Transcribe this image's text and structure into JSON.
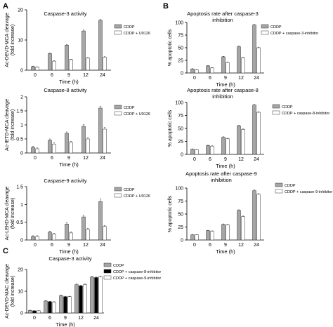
{
  "panels": [
    {
      "id": "panel-a",
      "letter": "A"
    },
    {
      "id": "panel-b",
      "letter": "B"
    },
    {
      "id": "panel-c",
      "letter": "C"
    }
  ],
  "colors": {
    "gray": "#a6a6a6",
    "white": "#ffffff",
    "black": "#000000",
    "axis": "#000000"
  },
  "chart_data": [
    {
      "id": "a1",
      "type": "bar",
      "title": "Caspase-3 activity",
      "ylabel": "Ac-DEVD-MCA cleavage (fold increase)",
      "xlabel": "Time (h)",
      "categories": [
        "0",
        "6",
        "9",
        "12",
        "24"
      ],
      "ylim": [
        0,
        20
      ],
      "yticks": [
        0,
        10,
        20
      ],
      "series": [
        {
          "name": "CDDP",
          "color": "gray",
          "values": [
            1.2,
            5.5,
            8.3,
            13.0,
            16.5
          ],
          "err": [
            0.15,
            0.2,
            0.25,
            0.3,
            0.35
          ]
        },
        {
          "name": "CDDP + U0126",
          "color": "white",
          "values": [
            1.0,
            3.0,
            3.5,
            4.0,
            4.3
          ],
          "err": [
            0.1,
            0.15,
            0.15,
            0.2,
            0.2
          ]
        }
      ],
      "legend": "right"
    },
    {
      "id": "a2",
      "type": "bar",
      "title": "Caspase-8 activity",
      "ylabel": "Ac-IETD-MCA cleavage (fold increase)",
      "xlabel": "Time (h)",
      "categories": [
        "0",
        "6",
        "9",
        "12",
        "24"
      ],
      "ylim": [
        0,
        2
      ],
      "yticks": [
        0,
        0.5,
        1,
        1.5,
        2
      ],
      "series": [
        {
          "name": "CDDP",
          "color": "gray",
          "values": [
            0.2,
            0.45,
            0.7,
            0.95,
            1.6
          ],
          "err": [
            0.04,
            0.05,
            0.05,
            0.06,
            0.07
          ]
        },
        {
          "name": "CDDP + U0126",
          "color": "white",
          "values": [
            0.15,
            0.32,
            0.38,
            0.5,
            0.85
          ],
          "err": [
            0.03,
            0.04,
            0.04,
            0.05,
            0.06
          ]
        }
      ],
      "legend": "right"
    },
    {
      "id": "a3",
      "type": "bar",
      "title": "Caspase-9 activity",
      "ylabel": "Ac-LEHD-MCA cleavage (fold increase)",
      "xlabel": "Time (h)",
      "categories": [
        "0",
        "6",
        "9",
        "12",
        "24"
      ],
      "ylim": [
        0,
        1.5
      ],
      "yticks": [
        0,
        0.5,
        1,
        1.5
      ],
      "series": [
        {
          "name": "CDDP",
          "color": "gray",
          "values": [
            0.1,
            0.22,
            0.45,
            0.65,
            1.08
          ],
          "err": [
            0.02,
            0.03,
            0.04,
            0.05,
            0.07
          ]
        },
        {
          "name": "CDDP + U0126",
          "color": "white",
          "values": [
            0.1,
            0.17,
            0.2,
            0.3,
            0.38
          ],
          "err": [
            0.02,
            0.02,
            0.03,
            0.03,
            0.03
          ]
        }
      ],
      "legend": "right"
    },
    {
      "id": "b1",
      "type": "bar",
      "title": "Apoptosis rate after caspase-3 inhibition",
      "ylabel": "% apoptotic cells",
      "xlabel": "Time (h)",
      "categories": [
        "0",
        "6",
        "9",
        "12",
        "24"
      ],
      "ylim": [
        0,
        100
      ],
      "yticks": [
        0,
        25,
        50,
        75,
        100
      ],
      "series": [
        {
          "name": "CDDP",
          "color": "gray",
          "values": [
            8,
            14,
            32,
            52,
            95
          ],
          "err": [
            0.6,
            0.8,
            1,
            1.2,
            1.3
          ]
        },
        {
          "name": "CDDP + caspase-3-inhibitor",
          "color": "white",
          "values": [
            6,
            10,
            21,
            30,
            50
          ],
          "err": [
            0.5,
            0.6,
            0.8,
            1,
            1.2
          ]
        }
      ],
      "legend": "right"
    },
    {
      "id": "b2",
      "type": "bar",
      "title": "Apoptosis rate after caspase-8 inhibition",
      "ylabel": "% apoptotic cells",
      "xlabel": "Time (h)",
      "categories": [
        "0",
        "6",
        "9",
        "12",
        "24"
      ],
      "ylim": [
        0,
        100
      ],
      "yticks": [
        0,
        25,
        50,
        75,
        100
      ],
      "series": [
        {
          "name": "CDDP",
          "color": "gray",
          "values": [
            10,
            17,
            33,
            55,
            95
          ],
          "err": [
            0.6,
            0.8,
            1,
            1.2,
            1.3
          ]
        },
        {
          "name": "CDDP + caspase-8-inhibitor",
          "color": "white",
          "values": [
            9,
            16,
            30,
            48,
            81
          ],
          "err": [
            0.5,
            0.7,
            1,
            1.2,
            1.3
          ]
        }
      ],
      "legend": "right"
    },
    {
      "id": "b3",
      "type": "bar",
      "title": "Apoptosis rate after caspase-9 inhibition",
      "ylabel": "% apoptotic cells",
      "xlabel": "Time (h)",
      "categories": [
        "0",
        "6",
        "9",
        "12",
        "24"
      ],
      "ylim": [
        0,
        100
      ],
      "yticks": [
        0,
        25,
        50,
        75,
        100
      ],
      "series": [
        {
          "name": "CDDP",
          "color": "gray",
          "values": [
            10,
            18,
            30,
            57,
            95
          ],
          "err": [
            0.6,
            0.8,
            1,
            1.2,
            1.3
          ]
        },
        {
          "name": "CDDP + caspase-9-inhibitor",
          "color": "white",
          "values": [
            10,
            17,
            29,
            45,
            88
          ],
          "err": [
            0.5,
            0.7,
            1,
            1.2,
            1.3
          ]
        }
      ],
      "legend": "right"
    },
    {
      "id": "c1",
      "type": "bar",
      "title": "Caspase-3 activity",
      "ylabel": "Ac-DEVD-MAC cleavage (fold increase)",
      "xlabel": "Time (h)",
      "categories": [
        "0",
        "6",
        "9",
        "12",
        "24"
      ],
      "ylim": [
        0,
        20
      ],
      "yticks": [
        0,
        10,
        20
      ],
      "series": [
        {
          "name": "CDDP",
          "color": "gray",
          "values": [
            1.2,
            5.5,
            8.0,
            13.0,
            16.5
          ],
          "err": [
            0.1,
            0.2,
            0.2,
            0.3,
            0.3
          ]
        },
        {
          "name": "CDDP + caspase-8-inhibitor",
          "color": "black",
          "values": [
            1.0,
            5.2,
            7.5,
            12.5,
            16.3
          ],
          "err": [
            0.1,
            0.2,
            0.2,
            0.3,
            0.3
          ]
        },
        {
          "name": "CDDP + caspase-9-inhibitor",
          "color": "white",
          "values": [
            1.0,
            5.0,
            7.5,
            13.0,
            16.7
          ],
          "err": [
            0.1,
            0.2,
            0.2,
            0.3,
            0.3
          ]
        }
      ],
      "legend": "right"
    }
  ]
}
